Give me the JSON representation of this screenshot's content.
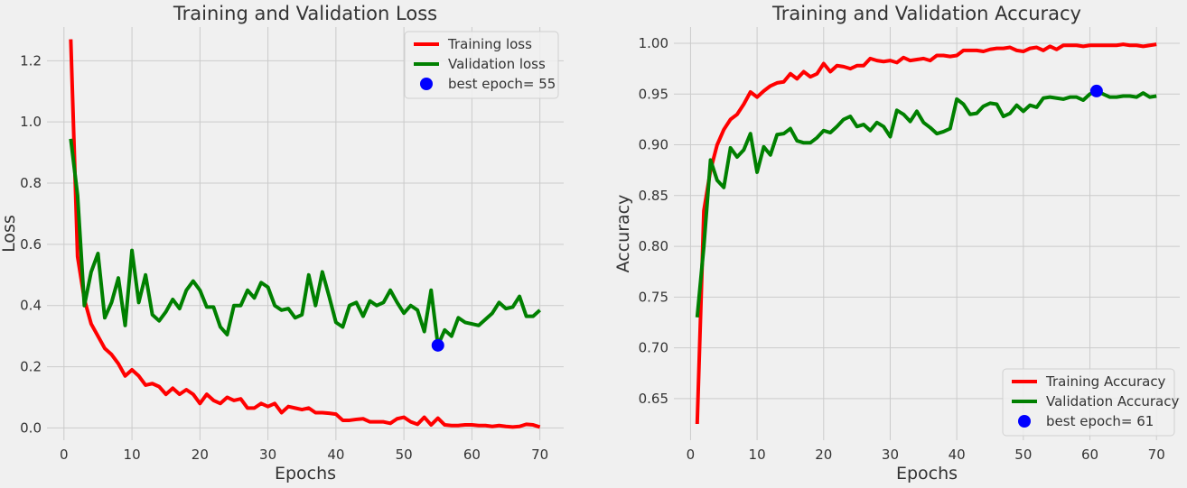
{
  "figure": {
    "background": "#f0f0f0",
    "grid_color": "#cbcbcb"
  },
  "chart_data": [
    {
      "type": "line",
      "title": "Training and Validation Loss",
      "xlabel": "Epochs",
      "ylabel": "Loss",
      "xlim": [
        -2.5,
        73.5
      ],
      "ylim": [
        -0.04,
        1.31
      ],
      "xticks": [
        0,
        10,
        20,
        30,
        40,
        50,
        60,
        70
      ],
      "yticks": [
        0.0,
        0.2,
        0.4,
        0.6,
        0.8,
        1.0,
        1.2
      ],
      "ytick_labels": [
        "0.0",
        "0.2",
        "0.4",
        "0.6",
        "0.8",
        "1.0",
        "1.2"
      ],
      "grid": true,
      "legend_position": "top-right",
      "x": [
        1,
        2,
        3,
        4,
        5,
        6,
        7,
        8,
        9,
        10,
        11,
        12,
        13,
        14,
        15,
        16,
        17,
        18,
        19,
        20,
        21,
        22,
        23,
        24,
        25,
        26,
        27,
        28,
        29,
        30,
        31,
        32,
        33,
        34,
        35,
        36,
        37,
        38,
        39,
        40,
        41,
        42,
        43,
        44,
        45,
        46,
        47,
        48,
        49,
        50,
        51,
        52,
        53,
        54,
        55,
        56,
        57,
        58,
        59,
        60,
        61,
        62,
        63,
        64,
        65,
        66,
        67,
        68,
        69,
        70
      ],
      "series": [
        {
          "name": "Training loss",
          "color": "#ff0000",
          "values": [
            1.27,
            0.56,
            0.42,
            0.34,
            0.3,
            0.26,
            0.24,
            0.21,
            0.17,
            0.19,
            0.17,
            0.14,
            0.145,
            0.135,
            0.11,
            0.13,
            0.11,
            0.125,
            0.11,
            0.08,
            0.11,
            0.09,
            0.08,
            0.1,
            0.09,
            0.095,
            0.065,
            0.065,
            0.08,
            0.07,
            0.08,
            0.05,
            0.07,
            0.065,
            0.06,
            0.065,
            0.05,
            0.05,
            0.048,
            0.045,
            0.025,
            0.025,
            0.028,
            0.03,
            0.02,
            0.02,
            0.02,
            0.015,
            0.03,
            0.035,
            0.02,
            0.012,
            0.035,
            0.01,
            0.032,
            0.01,
            0.008,
            0.008,
            0.01,
            0.01,
            0.008,
            0.008,
            0.005,
            0.008,
            0.005,
            0.003,
            0.005,
            0.012,
            0.01,
            0.003
          ]
        },
        {
          "name": "Validation loss",
          "color": "#008000",
          "values": [
            0.945,
            0.76,
            0.4,
            0.51,
            0.57,
            0.36,
            0.41,
            0.49,
            0.335,
            0.58,
            0.41,
            0.5,
            0.37,
            0.35,
            0.38,
            0.42,
            0.39,
            0.45,
            0.48,
            0.45,
            0.395,
            0.395,
            0.33,
            0.305,
            0.4,
            0.4,
            0.45,
            0.425,
            0.475,
            0.46,
            0.4,
            0.385,
            0.39,
            0.36,
            0.37,
            0.5,
            0.4,
            0.51,
            0.43,
            0.345,
            0.33,
            0.4,
            0.41,
            0.365,
            0.415,
            0.4,
            0.41,
            0.45,
            0.41,
            0.375,
            0.4,
            0.385,
            0.315,
            0.45,
            0.27,
            0.32,
            0.3,
            0.36,
            0.345,
            0.34,
            0.335,
            0.355,
            0.375,
            0.41,
            0.39,
            0.395,
            0.43,
            0.365,
            0.365,
            0.385
          ]
        }
      ],
      "best": {
        "label": "best epoch= 55",
        "x": 55,
        "y": 0.27,
        "color": "#0000ff"
      }
    },
    {
      "type": "line",
      "title": "Training and Validation Accuracy",
      "xlabel": "Epochs",
      "ylabel": "Accuracy",
      "xlim": [
        -2.5,
        73.5
      ],
      "ylim": [
        0.609,
        1.016
      ],
      "xticks": [
        0,
        10,
        20,
        30,
        40,
        50,
        60,
        70
      ],
      "yticks": [
        0.65,
        0.7,
        0.75,
        0.8,
        0.85,
        0.9,
        0.95,
        1.0
      ],
      "ytick_labels": [
        "0.65",
        "0.70",
        "0.75",
        "0.80",
        "0.85",
        "0.90",
        "0.95",
        "1.00"
      ],
      "grid": true,
      "legend_position": "bottom-right",
      "x": [
        1,
        2,
        3,
        4,
        5,
        6,
        7,
        8,
        9,
        10,
        11,
        12,
        13,
        14,
        15,
        16,
        17,
        18,
        19,
        20,
        21,
        22,
        23,
        24,
        25,
        26,
        27,
        28,
        29,
        30,
        31,
        32,
        33,
        34,
        35,
        36,
        37,
        38,
        39,
        40,
        41,
        42,
        43,
        44,
        45,
        46,
        47,
        48,
        49,
        50,
        51,
        52,
        53,
        54,
        55,
        56,
        57,
        58,
        59,
        60,
        61,
        62,
        63,
        64,
        65,
        66,
        67,
        68,
        69,
        70
      ],
      "series": [
        {
          "name": "Training Accuracy",
          "color": "#ff0000",
          "values": [
            0.625,
            0.835,
            0.875,
            0.9,
            0.915,
            0.925,
            0.93,
            0.94,
            0.952,
            0.947,
            0.953,
            0.958,
            0.961,
            0.962,
            0.97,
            0.965,
            0.972,
            0.967,
            0.97,
            0.98,
            0.972,
            0.978,
            0.977,
            0.975,
            0.978,
            0.978,
            0.985,
            0.983,
            0.982,
            0.983,
            0.981,
            0.986,
            0.983,
            0.984,
            0.985,
            0.983,
            0.988,
            0.988,
            0.987,
            0.988,
            0.993,
            0.993,
            0.993,
            0.992,
            0.994,
            0.995,
            0.995,
            0.996,
            0.993,
            0.992,
            0.995,
            0.996,
            0.993,
            0.997,
            0.994,
            0.998,
            0.998,
            0.998,
            0.997,
            0.998,
            0.998,
            0.998,
            0.998,
            0.998,
            0.999,
            0.998,
            0.998,
            0.997,
            0.998,
            0.999
          ]
        },
        {
          "name": "Validation Accuracy",
          "color": "#008000",
          "values": [
            0.73,
            0.8,
            0.885,
            0.865,
            0.858,
            0.897,
            0.888,
            0.895,
            0.911,
            0.873,
            0.898,
            0.89,
            0.91,
            0.911,
            0.916,
            0.904,
            0.902,
            0.902,
            0.907,
            0.914,
            0.912,
            0.918,
            0.925,
            0.928,
            0.918,
            0.92,
            0.914,
            0.922,
            0.918,
            0.908,
            0.934,
            0.93,
            0.923,
            0.933,
            0.922,
            0.917,
            0.911,
            0.913,
            0.916,
            0.945,
            0.94,
            0.93,
            0.931,
            0.938,
            0.941,
            0.94,
            0.928,
            0.931,
            0.939,
            0.933,
            0.939,
            0.937,
            0.946,
            0.947,
            0.946,
            0.945,
            0.947,
            0.947,
            0.944,
            0.95,
            0.953,
            0.95,
            0.947,
            0.947,
            0.948,
            0.948,
            0.947,
            0.951,
            0.947,
            0.948
          ]
        }
      ],
      "best": {
        "label": "best epoch= 61",
        "x": 61,
        "y": 0.953,
        "color": "#0000ff"
      }
    }
  ]
}
